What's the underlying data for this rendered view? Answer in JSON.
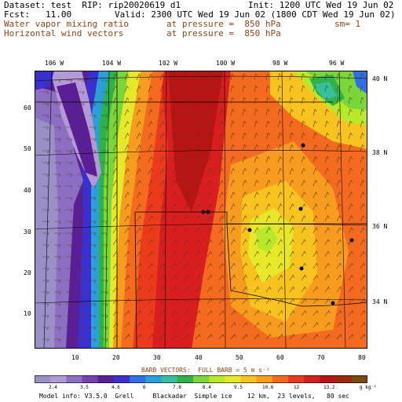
{
  "header": {
    "dataset": "Dataset: test  RIP: rip20020619 d1",
    "init": "Init: 1200 UTC Wed 19 Jun 02",
    "fcst": "Fcst:   11.00",
    "valid": "Valid: 2300 UTC Wed 19 Jun 02 (1800 CDT Wed 19 Jun 02)",
    "field1": "Water vapor mixing ratio",
    "field1_pressure": "at pressure =  850 hPa",
    "field1_sm": "sm= 1",
    "field2": "Horizontal wind vectors",
    "field2_pressure": "at pressure =  850 hPa"
  },
  "top_longitudes": [
    "106 W",
    "104 W",
    "102 W",
    "100 W",
    "98 W",
    "96 W"
  ],
  "right_latitudes": [
    "40 N",
    "38 N",
    "36 N",
    "34 N"
  ],
  "left_ticks": [
    "60",
    "50",
    "40",
    "30",
    "20",
    "10"
  ],
  "bottom_ticks": [
    "10",
    "20",
    "30",
    "40",
    "50",
    "60",
    "70",
    "80"
  ],
  "barb_note": "BARB VECTORS:  FULL BARB = 5 m s⁻¹",
  "colorbar": {
    "labels": [
      "2.4",
      "3.5",
      "4.6",
      "6",
      "7.8",
      "8.4",
      "9.5",
      "10.6",
      "12",
      "13.2"
    ],
    "units": "g kg⁻¹",
    "colors": [
      "#9a8fc6",
      "#b39ad6",
      "#8c6fc2",
      "#7a3fb0",
      "#5a1e96",
      "#3a2fcf",
      "#2f6fe6",
      "#2a9fd8",
      "#36c0a0",
      "#2fb24a",
      "#7bd63a",
      "#b8e82c",
      "#e8e82a",
      "#f7c41f",
      "#f79c1f",
      "#f46a1e",
      "#ec3b1c",
      "#d81e1e",
      "#b71414",
      "#9b2b0d",
      "#7a4a10"
    ]
  },
  "footer": "Model info: V3.5.0  Grell     Blackadar  Simple ice    12 km,  23 levels,   80 sec"
}
